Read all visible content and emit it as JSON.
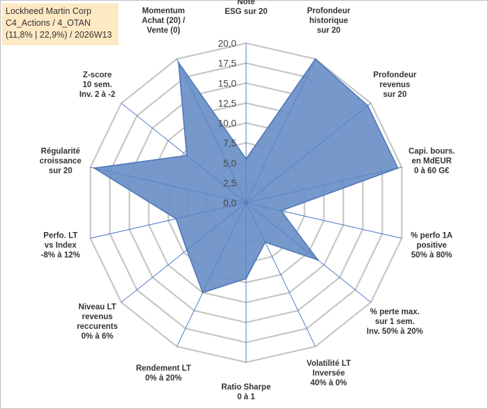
{
  "title_box": {
    "line1": "Lockheed Martin Corp",
    "line2": "C4_Actions / 4_OTAN",
    "line3": "(11,8% | 22,9%) / 2026W13"
  },
  "chart_data": {
    "type": "radar",
    "title": "Lockheed Martin Corp",
    "rmin": 0,
    "rmax": 20,
    "tick_step": 2.5,
    "tick_labels": [
      "0,0",
      "2,5",
      "5,0",
      "7,5",
      "10,0",
      "12,5",
      "15,0",
      "17,5",
      "20,0"
    ],
    "grid": true,
    "colors": {
      "fill": "#6a8fc7",
      "line": "#4f78b8",
      "grid": "#c6c6c6",
      "spoke": "#4472c4"
    },
    "axes": [
      {
        "label": [
          "Note",
          "ESG sur 20"
        ],
        "value": 5.5
      },
      {
        "label": [
          "Profondeur",
          "historique",
          "sur 20"
        ],
        "value": 20
      },
      {
        "label": [
          "Profondeur",
          "revenus",
          "sur 20"
        ],
        "value": 19.5
      },
      {
        "label": [
          "Capi. bours.",
          "en MdEUR",
          "0 à 60 G€"
        ],
        "value": 19.5
      },
      {
        "label": [
          "% perfo 1A",
          "positive",
          "50% à 80%"
        ],
        "value": 4.5
      },
      {
        "label": [
          "% perte max.",
          "sur 1 sem.",
          "Inv. 50% à 20%"
        ],
        "value": 11.5
      },
      {
        "label": [
          "Volatilité LT",
          "Inversée",
          "40% à 0%"
        ],
        "value": 5.5
      },
      {
        "label": [
          "Ratio Sharpe",
          "0 à 1"
        ],
        "value": 9.5
      },
      {
        "label": [
          "Rendement LT",
          "0% à 20%"
        ],
        "value": 12.5
      },
      {
        "label": [
          "Niveau LT",
          "revenus",
          "reccurents",
          "0% à 6%"
        ],
        "value": 9.5
      },
      {
        "label": [
          "Perfo. LT",
          "vs Index",
          "-8% à 12%"
        ],
        "value": 9
      },
      {
        "label": [
          "Régularité",
          "croissance",
          "sur 20"
        ],
        "value": 19.5
      },
      {
        "label": [
          "Z-score",
          "10 sem.",
          "Inv. 2 à -2"
        ],
        "value": 9.5
      },
      {
        "label": [
          "Momentum",
          "Achat (20) /",
          "Vente (0)"
        ],
        "value": 19.5
      }
    ]
  }
}
